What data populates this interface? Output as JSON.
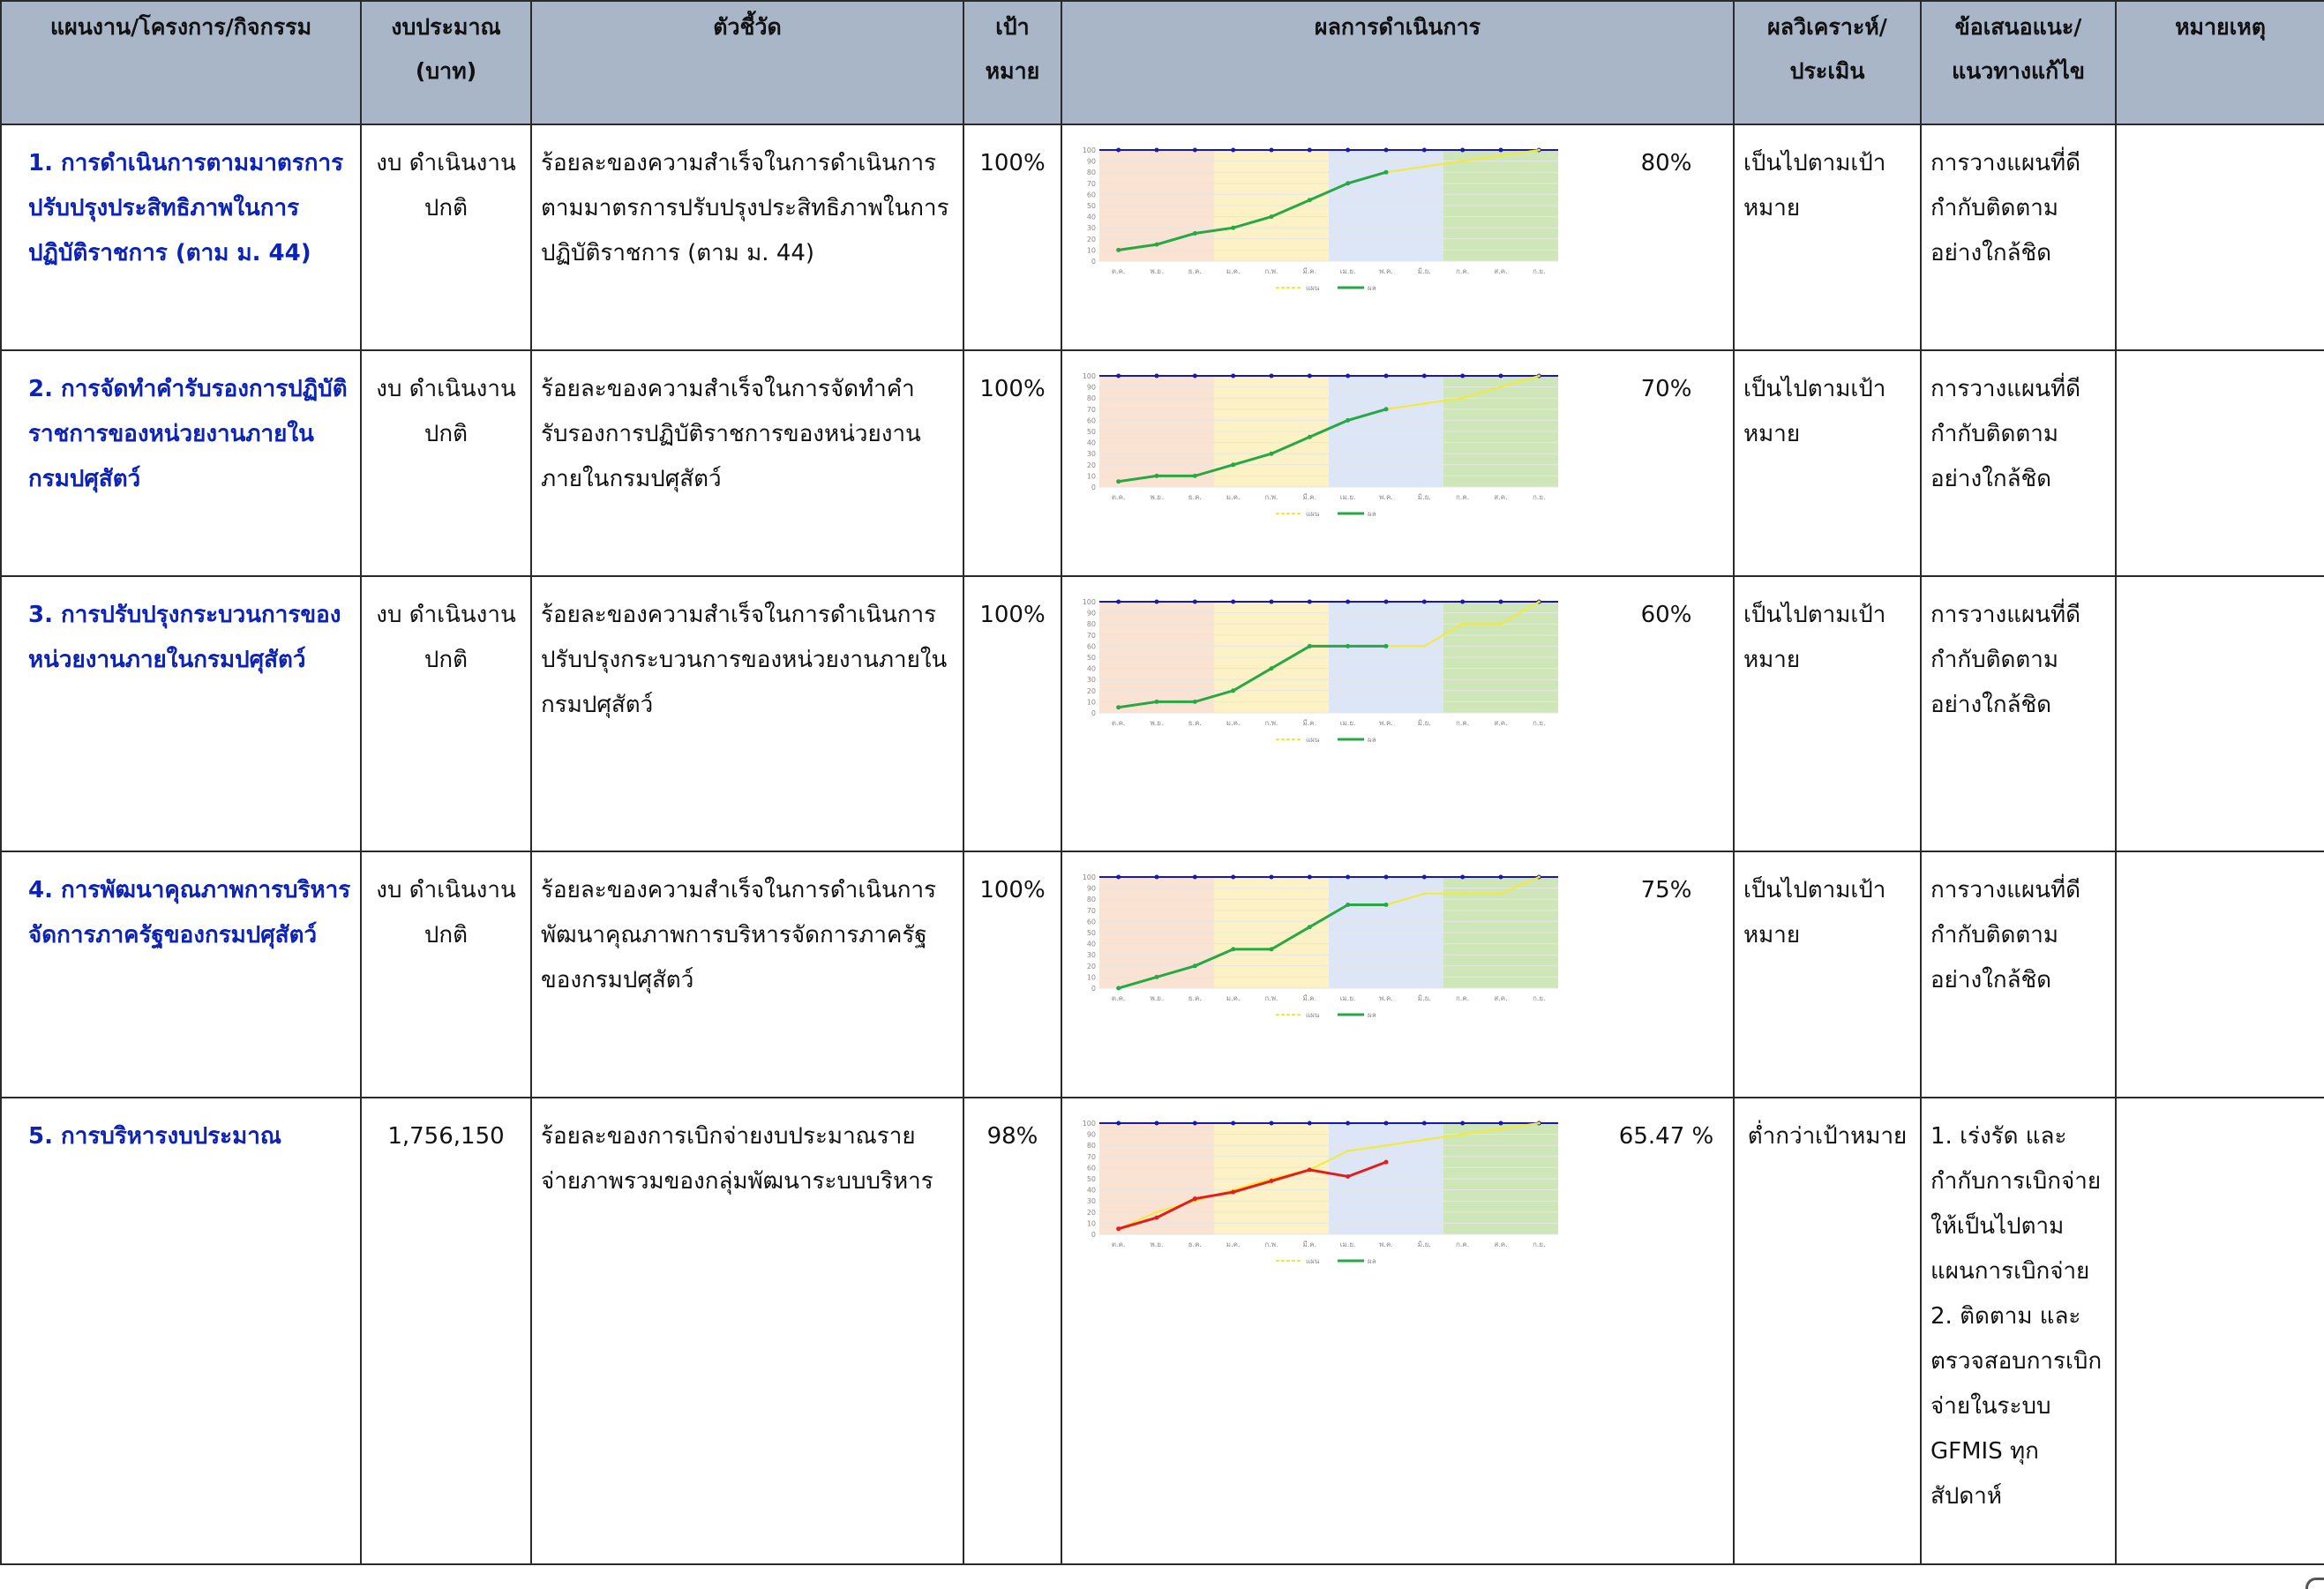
{
  "headers": {
    "plan": "แผนงาน/โครงการ/กิจกรรม",
    "budget": "งบประมาณ (บาท)",
    "indicator": "ตัวชี้วัด",
    "target": "เป้าหมาย",
    "result": "ผลการดำเนินการ",
    "analysis": "ผลวิเคราะห์/ประเมิน",
    "recommend": "ข้อเสนอแนะ/แนวทางแก้ไข",
    "remark": "หมายเหตุ"
  },
  "rows": [
    {
      "plan": "1. การดำเนินการตามมาตรการปรับปรุงประสิทธิภาพในการปฏิบัติราชการ (ตาม ม. 44)",
      "budget": "งบ ดำเนินงาน ปกติ",
      "indicator": "ร้อยละของความสำเร็จในการดำเนินการตามมาตรการปรับปรุงประสิทธิภาพในการปฏิบัติราชการ (ตาม ม. 44)",
      "target": "100%",
      "result": "80%",
      "analysis": "เป็นไปตามเป้าหมาย",
      "recommend": "การวางแผนที่ดี กำกับติดตามอย่างใกล้ชิด",
      "remark": ""
    },
    {
      "plan": "2. การจัดทำคำรับรองการปฏิบัติราชการของหน่วยงานภายในกรมปศุสัตว์",
      "budget": "งบ ดำเนินงาน ปกติ",
      "indicator": "ร้อยละของความสำเร็จในการจัดทำคำรับรองการปฏิบัติราชการของหน่วยงานภายในกรมปศุสัตว์",
      "target": "100%",
      "result": "70%",
      "analysis": "เป็นไปตามเป้าหมาย",
      "recommend": "การวางแผนที่ดี กำกับติดตามอย่างใกล้ชิด",
      "remark": ""
    },
    {
      "plan": "3. การปรับปรุงกระบวนการของหน่วยงานภายในกรมปศุสัตว์",
      "budget": "งบ ดำเนินงาน ปกติ",
      "indicator": "ร้อยละของความสำเร็จในการดำเนินการปรับปรุงกระบวนการของหน่วยงานภายในกรมปศุสัตว์",
      "target": "100%",
      "result": "60%",
      "analysis": "เป็นไปตามเป้าหมาย",
      "recommend": "การวางแผนที่ดี กำกับติดตามอย่างใกล้ชิด",
      "remark": ""
    },
    {
      "plan": "4. การพัฒนาคุณภาพการบริหารจัดการภาครัฐของกรมปศุสัตว์",
      "budget": "งบ ดำเนินงาน ปกติ",
      "indicator": "ร้อยละของความสำเร็จในการดำเนินการพัฒนาคุณภาพการบริหารจัดการภาครัฐของกรมปศุสัตว์",
      "target": "100%",
      "result": "75%",
      "analysis": "เป็นไปตามเป้าหมาย",
      "recommend": "การวางแผนที่ดี กำกับติดตามอย่างใกล้ชิด",
      "remark": ""
    },
    {
      "plan": "5. การบริหารงบประมาณ",
      "budget": "1,756,150",
      "indicator": "ร้อยละของการเบิกจ่ายงบประมาณรายจ่ายภาพรวมของกลุ่มพัฒนาระบบบริหาร",
      "target": "98%",
      "result": "65.47 %",
      "analysis": "ต่ำกว่าเป้าหมาย",
      "recommend": "1. เร่งรัด และกำกับการเบิกจ่ายให้เป็นไปตามแผนการเบิกจ่าย 2. ติดตาม และตรวจสอบการเบิกจ่ายในระบบ GFMIS ทุกสัปดาห์",
      "remark": ""
    }
  ],
  "chart_data": [
    {
      "type": "line",
      "categories": [
        "ต.ค.",
        "พ.ย.",
        "ธ.ค.",
        "ม.ค.",
        "ก.พ.",
        "มี.ค.",
        "เม.ย.",
        "พ.ค.",
        "มิ.ย.",
        "ก.ค.",
        "ส.ค.",
        "ก.ย."
      ],
      "ylim": [
        0,
        100
      ],
      "yticks": [
        0,
        10,
        20,
        30,
        40,
        50,
        60,
        70,
        80,
        90,
        100
      ],
      "series": [
        {
          "name": "แผน",
          "color": "#f2ea3a",
          "values": [
            null,
            null,
            null,
            null,
            null,
            null,
            null,
            80,
            85,
            90,
            95,
            100
          ]
        },
        {
          "name": "ผล",
          "color": "#27a844",
          "values": [
            10,
            15,
            25,
            30,
            40,
            55,
            70,
            80,
            null,
            null,
            null,
            null
          ]
        }
      ],
      "quarter_colors": [
        "#fbe3d3",
        "#fdf1c6",
        "#dde6f6",
        "#cfe7b8"
      ],
      "legend": "bottom"
    },
    {
      "type": "line",
      "categories": [
        "ต.ค.",
        "พ.ย.",
        "ธ.ค.",
        "ม.ค.",
        "ก.พ.",
        "มี.ค.",
        "เม.ย.",
        "พ.ค.",
        "มิ.ย.",
        "ก.ค.",
        "ส.ค.",
        "ก.ย."
      ],
      "ylim": [
        0,
        100
      ],
      "yticks": [
        0,
        10,
        20,
        30,
        40,
        50,
        60,
        70,
        80,
        90,
        100
      ],
      "series": [
        {
          "name": "แผน",
          "color": "#f2ea3a",
          "values": [
            null,
            null,
            null,
            null,
            null,
            null,
            null,
            70,
            75,
            80,
            90,
            100
          ]
        },
        {
          "name": "ผล",
          "color": "#27a844",
          "values": [
            5,
            10,
            10,
            20,
            30,
            45,
            60,
            70,
            null,
            null,
            null,
            null
          ]
        }
      ],
      "quarter_colors": [
        "#fbe3d3",
        "#fdf1c6",
        "#dde6f6",
        "#cfe7b8"
      ],
      "legend": "bottom"
    },
    {
      "type": "line",
      "categories": [
        "ต.ค.",
        "พ.ย.",
        "ธ.ค.",
        "ม.ค.",
        "ก.พ.",
        "มี.ค.",
        "เม.ย.",
        "พ.ค.",
        "มิ.ย.",
        "ก.ค.",
        "ส.ค.",
        "ก.ย."
      ],
      "ylim": [
        0,
        100
      ],
      "yticks": [
        0,
        10,
        20,
        30,
        40,
        50,
        60,
        70,
        80,
        90,
        100
      ],
      "series": [
        {
          "name": "แผน",
          "color": "#f2ea3a",
          "values": [
            null,
            null,
            null,
            null,
            null,
            null,
            null,
            60,
            60,
            80,
            80,
            100
          ]
        },
        {
          "name": "ผล",
          "color": "#27a844",
          "values": [
            5,
            10,
            10,
            20,
            40,
            60,
            60,
            60,
            null,
            null,
            null,
            null
          ]
        }
      ],
      "quarter_colors": [
        "#fbe3d3",
        "#fdf1c6",
        "#dde6f6",
        "#cfe7b8"
      ],
      "legend": "bottom"
    },
    {
      "type": "line",
      "categories": [
        "ต.ค.",
        "พ.ย.",
        "ธ.ค.",
        "ม.ค.",
        "ก.พ.",
        "มี.ค.",
        "เม.ย.",
        "พ.ค.",
        "มิ.ย.",
        "ก.ค.",
        "ส.ค.",
        "ก.ย."
      ],
      "ylim": [
        0,
        100
      ],
      "yticks": [
        0,
        10,
        20,
        30,
        40,
        50,
        60,
        70,
        80,
        90,
        100
      ],
      "series": [
        {
          "name": "แผน",
          "color": "#f2ea3a",
          "values": [
            null,
            null,
            null,
            null,
            null,
            null,
            null,
            75,
            85,
            85,
            85,
            100
          ]
        },
        {
          "name": "ผล",
          "color": "#27a844",
          "values": [
            0,
            10,
            20,
            35,
            35,
            55,
            75,
            75,
            null,
            null,
            null,
            null
          ]
        }
      ],
      "quarter_colors": [
        "#fbe3d3",
        "#fdf1c6",
        "#dde6f6",
        "#cfe7b8"
      ],
      "legend": "bottom"
    },
    {
      "type": "line",
      "categories": [
        "ต.ค.",
        "พ.ย.",
        "ธ.ค.",
        "ม.ค.",
        "ก.พ.",
        "มี.ค.",
        "เม.ย.",
        "พ.ค.",
        "มิ.ย.",
        "ก.ค.",
        "ส.ค.",
        "ก.ย."
      ],
      "ylim": [
        0,
        100
      ],
      "yticks": [
        0,
        10,
        20,
        30,
        40,
        50,
        60,
        70,
        80,
        90,
        100
      ],
      "series": [
        {
          "name": "แผน",
          "color": "#f2ea3a",
          "values": [
            5,
            20,
            30,
            40,
            50,
            58,
            75,
            80,
            85,
            90,
            95,
            100
          ]
        },
        {
          "name": "ผล",
          "color": "#27a844",
          "values": [
            5,
            15,
            32,
            38,
            48,
            58,
            52,
            65,
            null,
            null,
            null,
            null
          ]
        }
      ],
      "actual_color": "#e11d1d",
      "quarter_colors": [
        "#fbe3d3",
        "#fdf1c6",
        "#dde6f6",
        "#cfe7b8"
      ],
      "legend": "bottom"
    }
  ]
}
